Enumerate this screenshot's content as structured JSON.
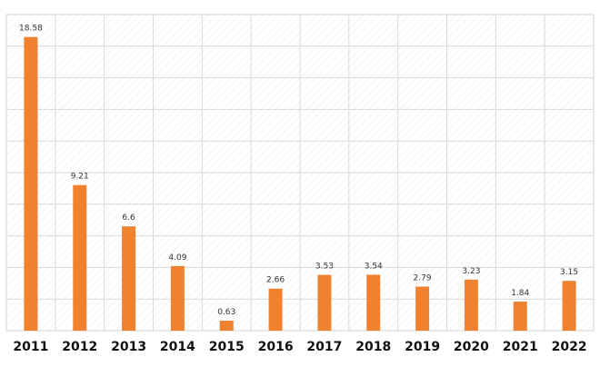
{
  "chart_data": {
    "type": "bar",
    "title": "",
    "xlabel": "",
    "ylabel": "",
    "categories": [
      "2011",
      "2012",
      "2013",
      "2014",
      "2015",
      "2016",
      "2017",
      "2018",
      "2019",
      "2020",
      "2021",
      "2022"
    ],
    "values": [
      18.58,
      9.21,
      6.6,
      4.09,
      0.63,
      2.66,
      3.53,
      3.54,
      2.79,
      3.23,
      1.84,
      3.15
    ],
    "value_labels": [
      "18.58",
      "9.21",
      "6.6",
      "4.09",
      "0.63",
      "2.66",
      "3.53",
      "3.54",
      "2.79",
      "3.23",
      "1.84",
      "3.15"
    ],
    "ylim": [
      0,
      20
    ],
    "grid": true,
    "y_tick_labels_shown": false,
    "legend": "none",
    "colors": {
      "bar": "#F0822F",
      "grid": "#D9D9D9",
      "hatch": "#EBEBEB",
      "plot_border": "#D0D0D0"
    }
  }
}
